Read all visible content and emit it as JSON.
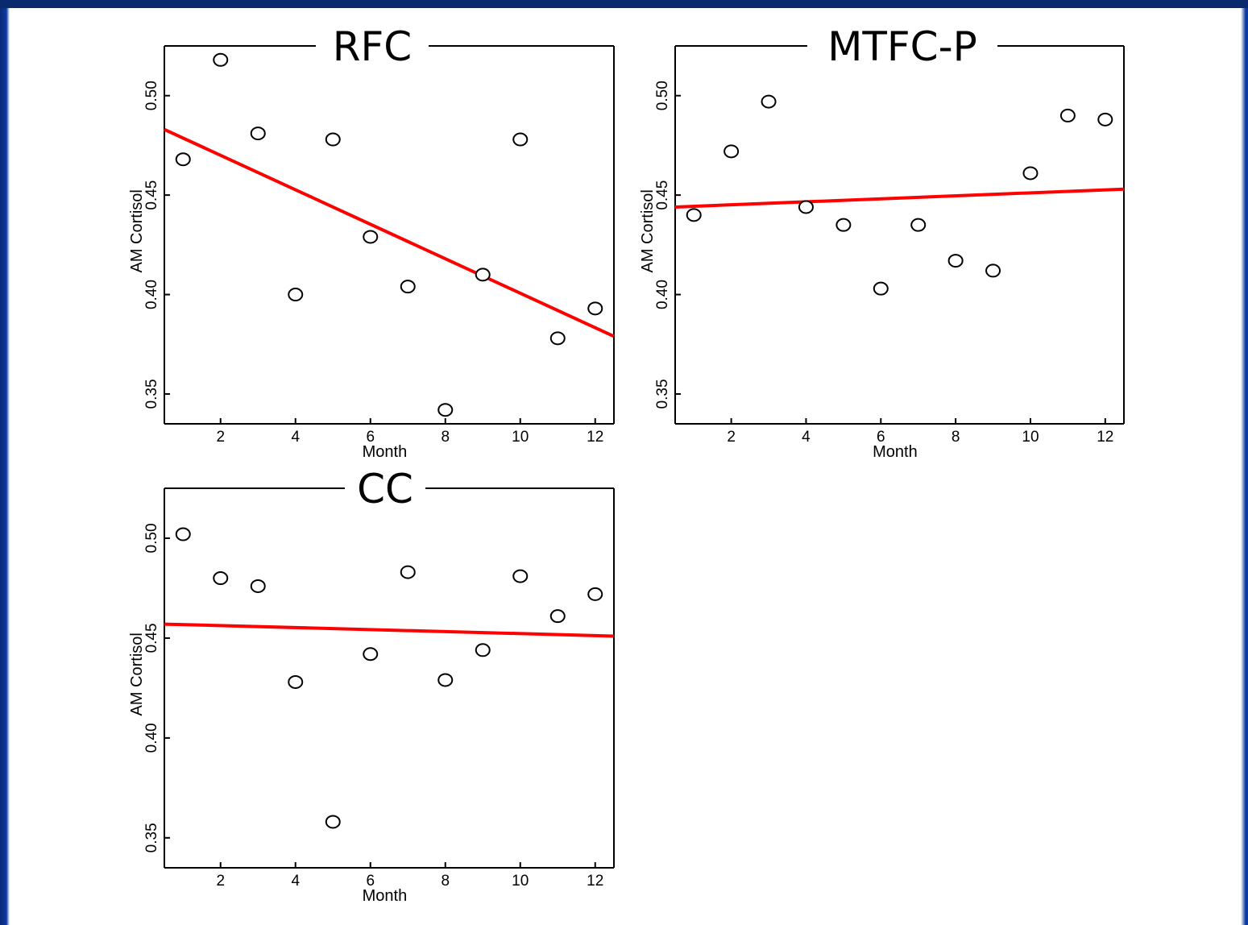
{
  "colors": {
    "frame_left": "#0b3aa0",
    "background": "#ffffff",
    "fit_line": "#ff0000",
    "points": "#000000"
  },
  "chart_data": [
    {
      "type": "scatter",
      "title": "RFC",
      "xlabel": "Month",
      "ylabel": "AM Cortisol",
      "xlim": [
        0.5,
        12.5
      ],
      "ylim": [
        0.335,
        0.525
      ],
      "xticks": [
        2,
        4,
        6,
        8,
        10,
        12
      ],
      "yticks": [
        0.35,
        0.4,
        0.45,
        0.5
      ],
      "ytick_labels": [
        "0.35",
        "0.40",
        "0.45",
        "0.50"
      ],
      "grid": false,
      "x": [
        1,
        2,
        3,
        4,
        5,
        6,
        7,
        8,
        9,
        10,
        11,
        12
      ],
      "y": [
        0.468,
        0.518,
        0.481,
        0.4,
        0.478,
        0.429,
        0.404,
        0.342,
        0.41,
        0.478,
        0.378,
        0.393
      ],
      "fit_line": {
        "x": [
          0.5,
          12.5
        ],
        "y": [
          0.483,
          0.379
        ]
      }
    },
    {
      "type": "scatter",
      "title": "MTFC-P",
      "xlabel": "Month",
      "ylabel": "AM Cortisol",
      "xlim": [
        0.5,
        12.5
      ],
      "ylim": [
        0.335,
        0.525
      ],
      "xticks": [
        2,
        4,
        6,
        8,
        10,
        12
      ],
      "yticks": [
        0.35,
        0.4,
        0.45,
        0.5
      ],
      "ytick_labels": [
        "0.35",
        "0.40",
        "0.45",
        "0.50"
      ],
      "grid": false,
      "x": [
        1,
        2,
        3,
        4,
        5,
        6,
        7,
        8,
        9,
        10,
        11,
        12
      ],
      "y": [
        0.44,
        0.472,
        0.497,
        0.444,
        0.435,
        0.403,
        0.435,
        0.417,
        0.412,
        0.461,
        0.49,
        0.488
      ],
      "fit_line": {
        "x": [
          0.5,
          12.5
        ],
        "y": [
          0.444,
          0.453
        ]
      }
    },
    {
      "type": "scatter",
      "title": "CC",
      "xlabel": "Month",
      "ylabel": "AM Cortisol",
      "xlim": [
        0.5,
        12.5
      ],
      "ylim": [
        0.335,
        0.525
      ],
      "xticks": [
        2,
        4,
        6,
        8,
        10,
        12
      ],
      "yticks": [
        0.35,
        0.4,
        0.45,
        0.5
      ],
      "ytick_labels": [
        "0.35",
        "0.40",
        "0.45",
        "0.50"
      ],
      "grid": false,
      "x": [
        1,
        2,
        3,
        4,
        5,
        6,
        7,
        8,
        9,
        10,
        11,
        12
      ],
      "y": [
        0.502,
        0.48,
        0.476,
        0.428,
        0.358,
        0.442,
        0.483,
        0.429,
        0.444,
        0.481,
        0.461,
        0.472
      ],
      "fit_line": {
        "x": [
          0.5,
          12.5
        ],
        "y": [
          0.457,
          0.451
        ]
      }
    }
  ]
}
